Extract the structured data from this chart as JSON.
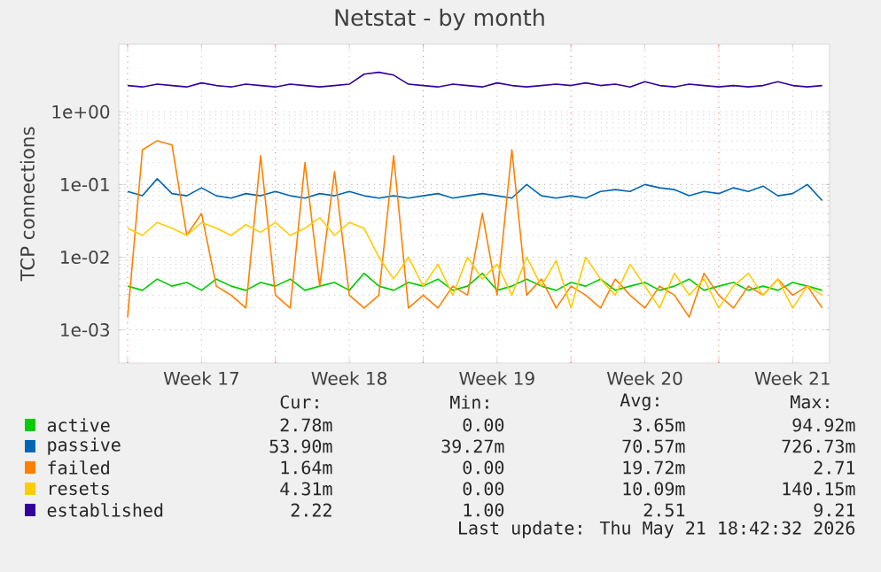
{
  "chart_data": {
    "type": "line",
    "title": "Netstat - by month",
    "ylabel": "TCP connections",
    "log": "y",
    "grid": true,
    "legend": "bottom",
    "marker": "none",
    "line_style": "solid",
    "ylim": [
      0.00035,
      8.5
    ],
    "categories": [
      null,
      null,
      null,
      null,
      null,
      "Week 17",
      null,
      null,
      null,
      null,
      null,
      null,
      null,
      null,
      null,
      "Week 18",
      null,
      null,
      null,
      null,
      null,
      null,
      null,
      null,
      null,
      "Week 19",
      null,
      null,
      null,
      null,
      null,
      null,
      null,
      null,
      null,
      "Week 20",
      null,
      null,
      null,
      null,
      null,
      null,
      null,
      null,
      null,
      "Week 21",
      null,
      null
    ],
    "yticks": [
      {
        "value": 0.001,
        "label": "1e-03"
      },
      {
        "value": 0.01,
        "label": "1e-02"
      },
      {
        "value": 0.1,
        "label": "1e-01"
      },
      {
        "value": 1,
        "label": "1e+00"
      }
    ],
    "series": [
      {
        "name": "active",
        "color": "#00cc00",
        "values": [
          0.004,
          0.0035,
          0.005,
          0.004,
          0.0045,
          0.0035,
          0.005,
          0.004,
          0.0035,
          0.0045,
          0.004,
          0.005,
          0.0035,
          0.004,
          0.0045,
          0.0035,
          0.006,
          0.004,
          0.0035,
          0.0045,
          0.004,
          0.005,
          0.0035,
          0.004,
          0.006,
          0.0035,
          0.004,
          0.005,
          0.004,
          0.0035,
          0.0045,
          0.004,
          0.005,
          0.0035,
          0.004,
          0.0045,
          0.0035,
          0.004,
          0.005,
          0.0035,
          0.004,
          0.0045,
          0.0035,
          0.004,
          0.0035,
          0.0045,
          0.004,
          0.0035
        ]
      },
      {
        "name": "passive",
        "color": "#0066b3",
        "values": [
          0.08,
          0.07,
          0.12,
          0.075,
          0.07,
          0.09,
          0.07,
          0.065,
          0.075,
          0.07,
          0.08,
          0.07,
          0.065,
          0.075,
          0.07,
          0.08,
          0.07,
          0.065,
          0.07,
          0.065,
          0.07,
          0.075,
          0.065,
          0.07,
          0.075,
          0.07,
          0.065,
          0.1,
          0.07,
          0.065,
          0.07,
          0.065,
          0.08,
          0.085,
          0.08,
          0.1,
          0.09,
          0.085,
          0.07,
          0.08,
          0.075,
          0.09,
          0.08,
          0.095,
          0.07,
          0.075,
          0.1,
          0.06
        ]
      },
      {
        "name": "failed",
        "color": "#ff8000",
        "values": [
          0.0015,
          0.3,
          0.4,
          0.35,
          0.02,
          0.04,
          0.004,
          0.003,
          0.002,
          0.25,
          0.003,
          0.002,
          0.2,
          0.004,
          0.15,
          0.003,
          0.002,
          0.003,
          0.25,
          0.002,
          0.003,
          0.002,
          0.004,
          0.003,
          0.04,
          0.003,
          0.3,
          0.003,
          0.005,
          0.002,
          0.004,
          0.003,
          0.002,
          0.005,
          0.003,
          0.002,
          0.004,
          0.003,
          0.0015,
          0.006,
          0.003,
          0.002,
          0.004,
          0.003,
          0.005,
          0.003,
          0.004,
          0.002
        ]
      },
      {
        "name": "resets",
        "color": "#ffcc00",
        "values": [
          0.025,
          0.02,
          0.03,
          0.025,
          0.02,
          0.03,
          0.025,
          0.02,
          0.028,
          0.022,
          0.03,
          0.02,
          0.025,
          0.035,
          0.02,
          0.03,
          0.025,
          0.01,
          0.005,
          0.01,
          0.004,
          0.008,
          0.003,
          0.01,
          0.005,
          0.008,
          0.003,
          0.01,
          0.004,
          0.009,
          0.002,
          0.01,
          0.005,
          0.003,
          0.008,
          0.004,
          0.002,
          0.006,
          0.003,
          0.005,
          0.002,
          0.004,
          0.006,
          0.003,
          0.005,
          0.002,
          0.004,
          0.003
        ]
      },
      {
        "name": "established",
        "color": "#330099",
        "values": [
          2.3,
          2.2,
          2.4,
          2.3,
          2.2,
          2.5,
          2.3,
          2.2,
          2.4,
          2.3,
          2.2,
          2.4,
          2.3,
          2.2,
          2.3,
          2.4,
          3.3,
          3.5,
          3.2,
          2.4,
          2.3,
          2.2,
          2.4,
          2.3,
          2.2,
          2.5,
          2.3,
          2.2,
          2.3,
          2.4,
          2.3,
          2.5,
          2.3,
          2.4,
          2.2,
          2.6,
          2.3,
          2.2,
          2.4,
          2.3,
          2.2,
          2.3,
          2.2,
          2.3,
          2.6,
          2.3,
          2.2,
          2.3
        ]
      }
    ],
    "annotations": [
      "Cur:",
      "Min:",
      "Avg:",
      "Max:",
      "2.78m",
      "0.00",
      "3.65m",
      "94.92m",
      "53.90m",
      "39.27m",
      "70.57m",
      "726.73m",
      "1.64m",
      "0.00",
      "19.72m",
      "2.71",
      "4.31m",
      "0.00",
      "10.09m",
      "140.15m",
      "2.22",
      "1.00",
      "2.51",
      "9.21",
      "Last update: Thu May 21 18:42:32 2026"
    ]
  }
}
